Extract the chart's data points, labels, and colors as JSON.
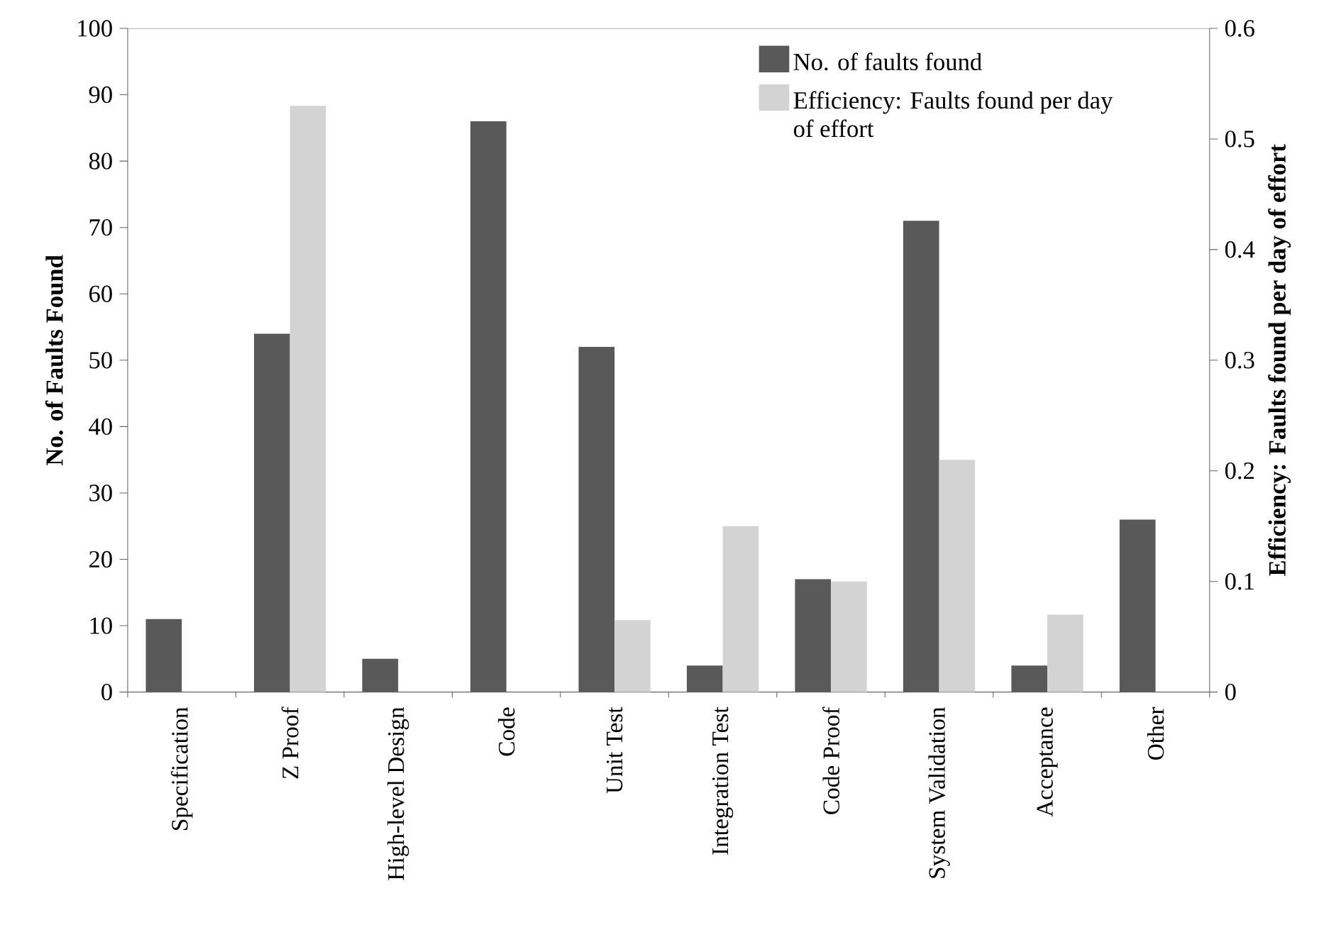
{
  "chart_data": {
    "type": "bar",
    "ylabel": "No. of Faults Found",
    "y2label": "Efficiency: Faults found per day of effort",
    "categories": [
      "Specification",
      "Z Proof",
      "High-level Design",
      "Code",
      "Unit Test",
      "Integration Test",
      "Code Proof",
      "System Validation",
      "Acceptance",
      "Other"
    ],
    "series": [
      {
        "name": "No. of faults found",
        "color": "#595959",
        "values": [
          11,
          54,
          5,
          86,
          52,
          4,
          17,
          71,
          4,
          26
        ]
      },
      {
        "name": "Efficiency: Faults found per day of effort",
        "color": "#d3d3d3",
        "axis": "y2",
        "values": [
          null,
          0.53,
          null,
          null,
          0.065,
          0.15,
          0.1,
          0.21,
          0.07,
          null
        ]
      }
    ],
    "ylim": [
      0,
      100
    ],
    "yticks": [
      0,
      10,
      20,
      30,
      40,
      50,
      60,
      70,
      80,
      90,
      100
    ],
    "y2lim": [
      0,
      0.6
    ],
    "y2ticks": [
      0,
      0.1,
      0.2,
      0.3,
      0.4,
      0.5,
      0.6
    ],
    "legend": "top right"
  }
}
